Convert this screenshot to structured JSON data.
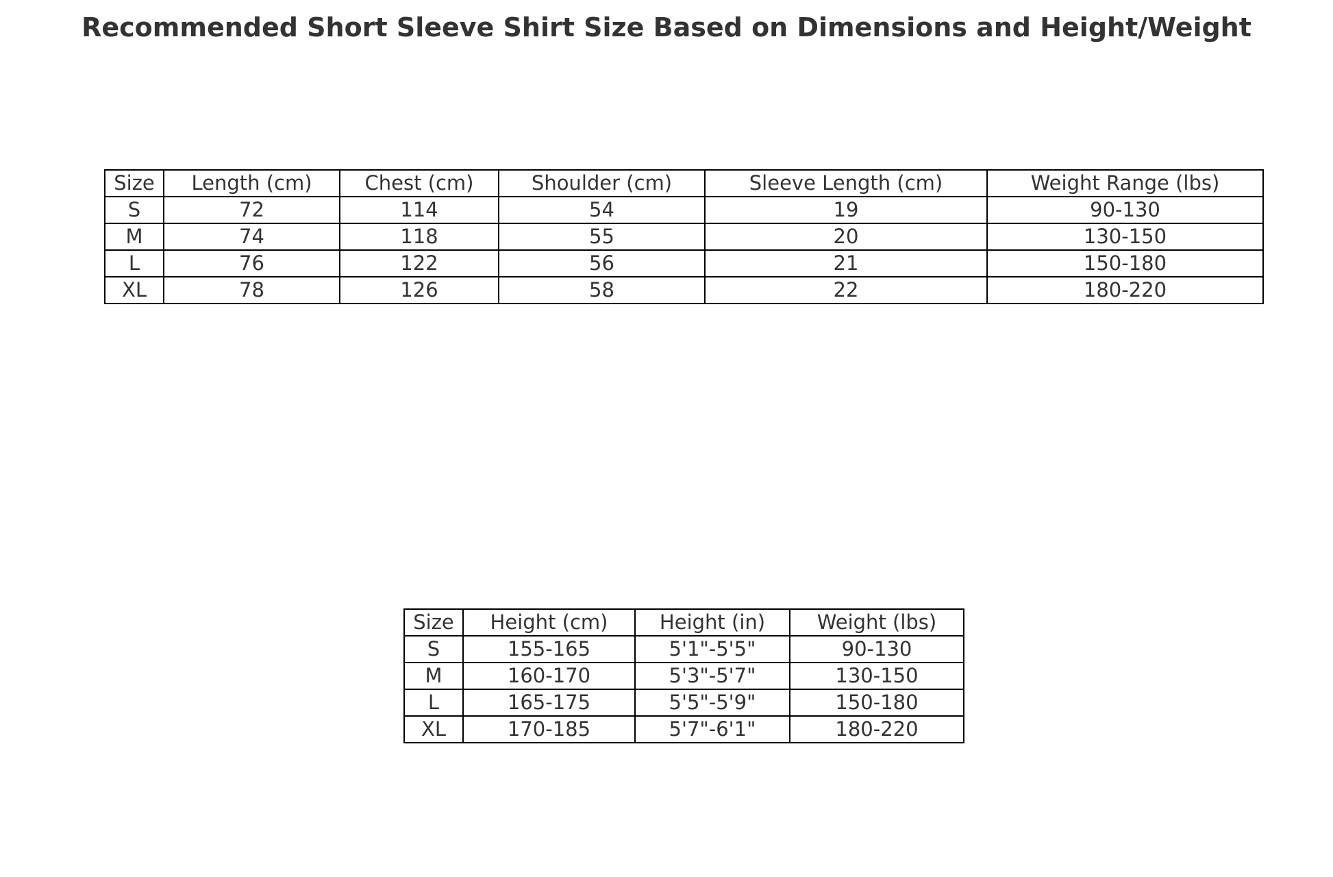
{
  "chart_data": [
    {
      "type": "table",
      "title": "Recommended Short Sleeve Shirt Size Based on Dimensions and Height/Weight",
      "columns": [
        "Size",
        "Length (cm)",
        "Chest (cm)",
        "Shoulder (cm)",
        "Sleeve Length (cm)",
        "Weight Range (lbs)"
      ],
      "rows": [
        [
          "S",
          "72",
          "114",
          "54",
          "19",
          "90-130"
        ],
        [
          "M",
          "74",
          "118",
          "55",
          "20",
          "130-150"
        ],
        [
          "L",
          "76",
          "122",
          "56",
          "21",
          "150-180"
        ],
        [
          "XL",
          "78",
          "126",
          "58",
          "22",
          "180-220"
        ]
      ]
    },
    {
      "type": "table",
      "columns": [
        "Size",
        "Height (cm)",
        "Height (in)",
        "Weight (lbs)"
      ],
      "rows": [
        [
          "S",
          "155-165",
          "5'1\"-5'5\"",
          "90-130"
        ],
        [
          "M",
          "160-170",
          "5'3\"-5'7\"",
          "130-150"
        ],
        [
          "L",
          "165-175",
          "5'5\"-5'9\"",
          "150-180"
        ],
        [
          "XL",
          "170-185",
          "5'7\"-6'1\"",
          "180-220"
        ]
      ]
    }
  ]
}
